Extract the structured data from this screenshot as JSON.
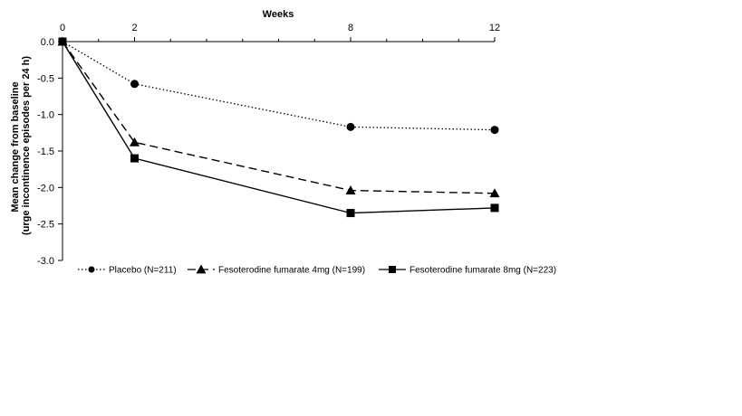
{
  "chart_data": {
    "type": "line",
    "title": "",
    "xlabel": "Weeks",
    "ylabel_line1": "Mean change from baseline",
    "ylabel_line2": "(urge incontinence episodes per 24 h)",
    "x": [
      0,
      2,
      8,
      12
    ],
    "x_ticks": [
      0,
      2,
      8,
      12
    ],
    "x_tick_labels": [
      "0",
      "2",
      "8",
      "12"
    ],
    "x_minor_ticks": [
      1,
      3,
      4,
      5,
      6,
      7,
      9,
      10,
      11
    ],
    "xlim": [
      0,
      12
    ],
    "ylim": [
      -3.0,
      0.0
    ],
    "y_ticks": [
      0.0,
      -0.5,
      -1.0,
      -1.5,
      -2.0,
      -2.5,
      -3.0
    ],
    "y_tick_labels": [
      "0.0",
      "-0.5",
      "-1.0",
      "-1.5",
      "-2.0",
      "-2.5",
      "-3.0"
    ],
    "x_axis_position": "top",
    "grid": false,
    "legend_position": "bottom",
    "series": [
      {
        "name": "Placebo (N=211)",
        "values": [
          0.0,
          -0.58,
          -1.17,
          -1.21
        ],
        "marker": "circle",
        "dash": "dotted",
        "color": "#000000"
      },
      {
        "name": "Fesoterodine fumarate 4mg (N=199)",
        "values": [
          0.0,
          -1.38,
          -2.04,
          -2.08
        ],
        "marker": "triangle",
        "dash": "dashed",
        "color": "#000000"
      },
      {
        "name": "Fesoterodine fumarate 8mg (N=223)",
        "values": [
          0.0,
          -1.6,
          -2.35,
          -2.28
        ],
        "marker": "square",
        "dash": "solid",
        "color": "#000000"
      }
    ]
  }
}
